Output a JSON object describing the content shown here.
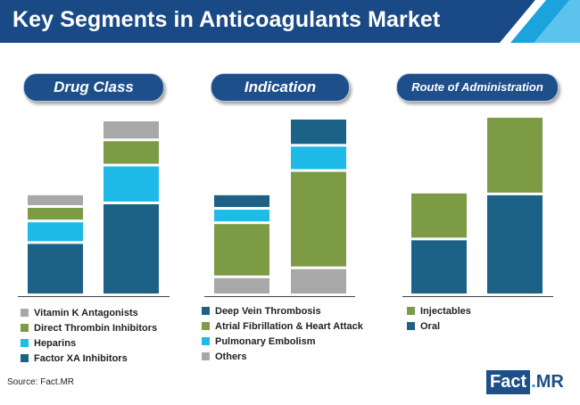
{
  "title": "Key Segments in Anticoagulants Market",
  "source": "Source: Fact.MR",
  "logo": {
    "part1": "Fact",
    "part2": ".",
    "part3": "MR"
  },
  "colors": {
    "header_dark": "#1a4a86",
    "header_light": "#1aa3dc",
    "pill": "#1e4f8a",
    "navy": "#1c6186",
    "cyan": "#1ebbe9",
    "green": "#7d9a45",
    "gray": "#a8a8a8"
  },
  "chart_data": [
    {
      "type": "bar",
      "stacked": true,
      "title": "Drug Class",
      "categories": [
        "",
        ""
      ],
      "ylim": [
        0,
        100
      ],
      "series": [
        {
          "name": "Factor XA Inhibitors",
          "color": "#1c6186",
          "values": [
            29,
            51
          ]
        },
        {
          "name": "Heparins",
          "color": "#1ebbe9",
          "values": [
            12,
            21
          ]
        },
        {
          "name": "Direct Thrombin Inhibitors",
          "color": "#7d9a45",
          "values": [
            8,
            14
          ]
        },
        {
          "name": "Vitamin K Antagonists",
          "color": "#a8a8a8",
          "values": [
            7,
            11
          ]
        }
      ],
      "legend_order": [
        "Vitamin K Antagonists",
        "Direct Thrombin Inhibitors",
        "Heparins",
        "Factor XA Inhibitors"
      ]
    },
    {
      "type": "bar",
      "stacked": true,
      "title": "Indication",
      "categories": [
        "",
        ""
      ],
      "ylim": [
        0,
        100
      ],
      "series": [
        {
          "name": "Others",
          "color": "#a8a8a8",
          "values": [
            10,
            15
          ]
        },
        {
          "name": "Atrial Fibrillation & Heart Attack",
          "color": "#7d9a45",
          "values": [
            30,
            54
          ]
        },
        {
          "name": "Pulmonary Embolism",
          "color": "#1ebbe9",
          "values": [
            8,
            14
          ]
        },
        {
          "name": "Deep Vein Thrombosis",
          "color": "#1c6186",
          "values": [
            8,
            15
          ]
        }
      ],
      "legend_order": [
        "Deep Vein Thrombosis",
        "Atrial Fibrillation & Heart Attack",
        "Pulmonary Embolism",
        "Others"
      ]
    },
    {
      "type": "bar",
      "stacked": true,
      "title": "Route of Administration",
      "categories": [
        "",
        ""
      ],
      "ylim": [
        0,
        100
      ],
      "series": [
        {
          "name": "Oral",
          "color": "#1c6186",
          "values": [
            31,
            56
          ]
        },
        {
          "name": "Injectables",
          "color": "#7d9a45",
          "values": [
            26,
            43
          ]
        }
      ],
      "legend_order": [
        "Injectables",
        "Oral"
      ]
    }
  ]
}
